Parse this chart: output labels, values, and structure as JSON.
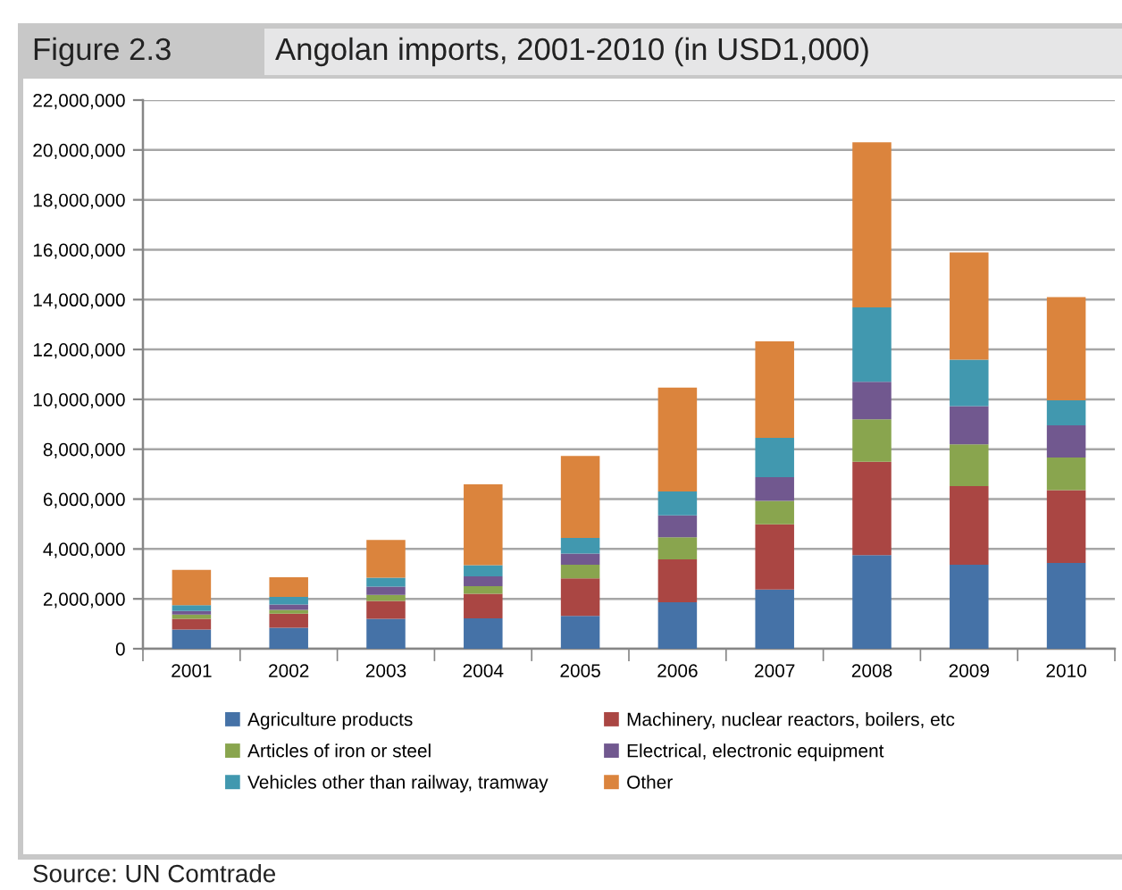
{
  "chart_data": {
    "type": "bar",
    "title": "Angolan imports, 2001-2010 (in USD1,000)",
    "annotations": [
      "Figure 2.3",
      "Source: UN Comtrade"
    ],
    "categories": [
      "2001",
      "2002",
      "2003",
      "2004",
      "2005",
      "2006",
      "2007",
      "2008",
      "2009",
      "2010"
    ],
    "stacked": true,
    "series": [
      {
        "name": "Agriculture products",
        "color": "#4572a7",
        "values": [
          770000,
          840000,
          1200000,
          1220000,
          1320000,
          1860000,
          2370000,
          3750000,
          3370000,
          3440000
        ]
      },
      {
        "name": "Machinery, nuclear reactors, boilers, etc",
        "color": "#aa4643",
        "values": [
          430000,
          570000,
          720000,
          980000,
          1500000,
          1720000,
          2620000,
          3750000,
          3150000,
          2920000
        ]
      },
      {
        "name": "Articles of iron or steel",
        "color": "#89a54e",
        "values": [
          170000,
          150000,
          240000,
          310000,
          550000,
          890000,
          940000,
          1700000,
          1680000,
          1310000
        ]
      },
      {
        "name": "Electrical, electronic equipment",
        "color": "#71588f",
        "values": [
          140000,
          210000,
          330000,
          390000,
          450000,
          880000,
          950000,
          1500000,
          1530000,
          1290000
        ]
      },
      {
        "name": "Vehicles other than railway, tramway",
        "color": "#4198af",
        "values": [
          240000,
          310000,
          360000,
          450000,
          620000,
          960000,
          1580000,
          2990000,
          1860000,
          1000000
        ]
      },
      {
        "name": "Other",
        "color": "#db843d",
        "values": [
          1410000,
          790000,
          1510000,
          3240000,
          3290000,
          4160000,
          3870000,
          6620000,
          4300000,
          4140000
        ]
      }
    ],
    "ylim": [
      0,
      22000000
    ],
    "yticks": [
      0,
      {
        "value": 2000000,
        "label": "2,000,000"
      },
      {
        "value": 4000000,
        "label": "4,000,000"
      },
      {
        "value": 6000000,
        "label": "6,000,000"
      },
      {
        "value": 8000000,
        "label": "8,000,000"
      },
      {
        "value": 10000000,
        "label": "10,000,000"
      },
      {
        "value": 12000000,
        "label": "12,000,000"
      },
      {
        "value": 14000000,
        "label": "14,000,000"
      },
      {
        "value": 16000000,
        "label": "16,000,000"
      },
      {
        "value": 18000000,
        "label": "18,000,000"
      },
      {
        "value": 20000000,
        "label": "20,000,000"
      },
      {
        "value": 22000000,
        "label": "22,000,000"
      }
    ],
    "grid": "y",
    "legend": "bottom"
  }
}
